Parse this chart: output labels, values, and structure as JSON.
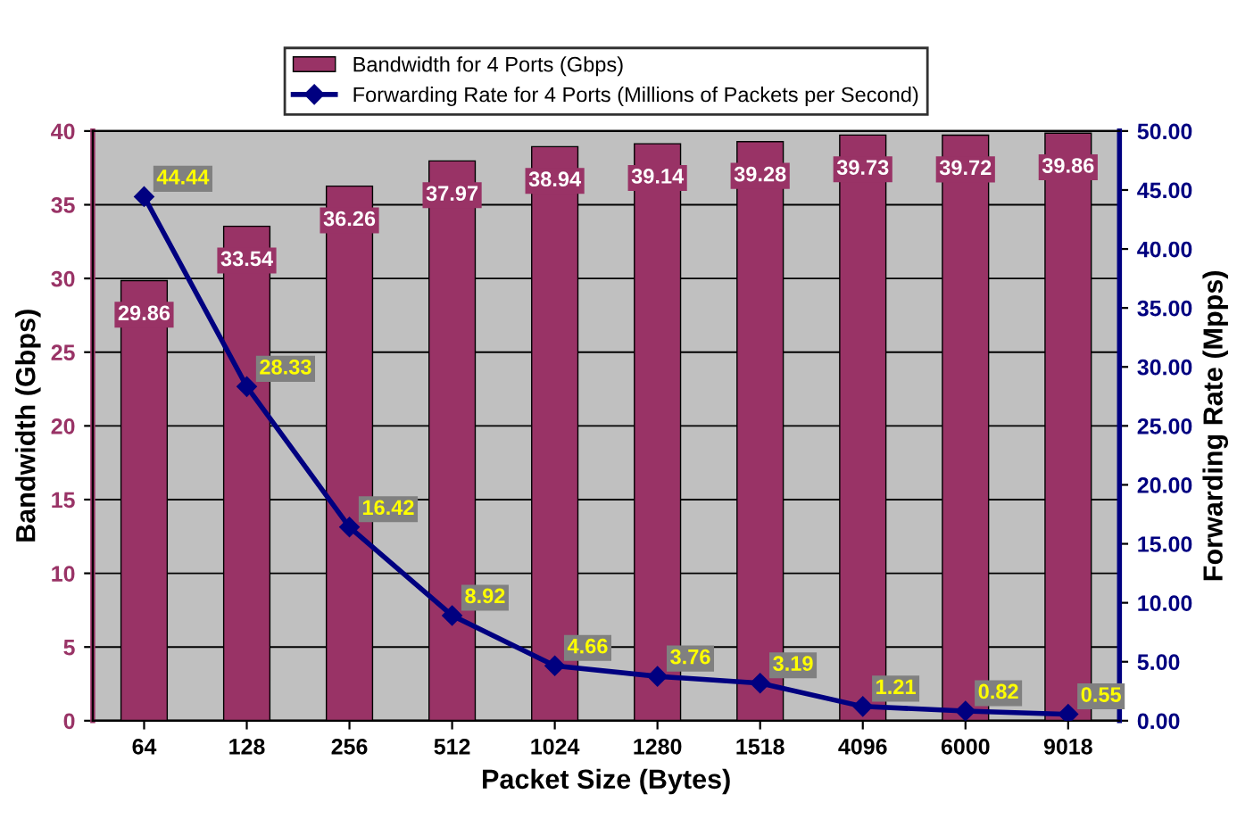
{
  "chart_data": {
    "type": "bar",
    "xlabel": "Packet Size (Bytes)",
    "ylabel": "Bandwidth (Gbps)",
    "y2label": "Forwarding Rate (Mpps)",
    "categories": [
      "64",
      "128",
      "256",
      "512",
      "1024",
      "1280",
      "1518",
      "4096",
      "6000",
      "9018"
    ],
    "series": [
      {
        "name": "Bandwidth for 4 Ports (Gbps)",
        "color": "#993366",
        "values": [
          29.86,
          33.54,
          36.26,
          37.97,
          38.94,
          39.14,
          39.28,
          39.73,
          39.72,
          39.86
        ]
      },
      {
        "name": "Forwarding Rate for 4 Ports (Millions of Packets per Second)",
        "type": "line",
        "axis": "y2",
        "color": "#000080",
        "marker": "diamond",
        "line_style": "solid",
        "values": [
          44.44,
          28.33,
          16.42,
          8.92,
          4.66,
          3.76,
          3.19,
          1.21,
          0.82,
          0.55
        ]
      }
    ],
    "ylim": [
      0,
      40
    ],
    "yticks": [
      0,
      5,
      10,
      15,
      20,
      25,
      30,
      35,
      40
    ],
    "y2lim": [
      0,
      50
    ],
    "y2ticks": [
      {
        "value": 0,
        "label": "0.00"
      },
      {
        "value": 5,
        "label": "5.00"
      },
      {
        "value": 10,
        "label": "10.00"
      },
      {
        "value": 15,
        "label": "15.00"
      },
      {
        "value": 20,
        "label": "20.00"
      },
      {
        "value": 25,
        "label": "25.00"
      },
      {
        "value": 30,
        "label": "30.00"
      },
      {
        "value": 35,
        "label": "35.00"
      },
      {
        "value": 40,
        "label": "40.00"
      },
      {
        "value": 45,
        "label": "45.00"
      },
      {
        "value": 50,
        "label": "50.00"
      }
    ],
    "data_labels": true,
    "grid": "y",
    "legend": "top"
  }
}
